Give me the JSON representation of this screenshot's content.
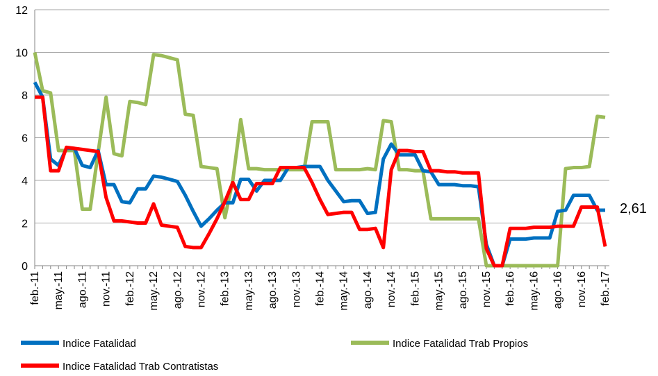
{
  "chart_data": {
    "type": "line",
    "categories": [
      "feb.-11",
      null,
      null,
      "may.-11",
      null,
      null,
      "ago.-11",
      null,
      null,
      "nov.-11",
      null,
      null,
      "feb.-12",
      null,
      null,
      "may.-12",
      null,
      null,
      "ago.-12",
      null,
      null,
      "nov.-12",
      null,
      null,
      "feb.-13",
      null,
      null,
      "may.-13",
      null,
      null,
      "ago.-13",
      null,
      null,
      "nov.-13",
      null,
      null,
      "feb.-14",
      null,
      null,
      "may.-14",
      null,
      null,
      "ago.-14",
      null,
      null,
      "nov.-14",
      null,
      null,
      "feb.-15",
      null,
      null,
      "may.-15",
      null,
      null,
      "ago.-15",
      null,
      null,
      "nov.-15",
      null,
      null,
      "feb.-16",
      null,
      null,
      "may.-16",
      null,
      null,
      "ago.-16",
      null,
      null,
      "nov.-16",
      null,
      null,
      "feb.-17"
    ],
    "series": [
      {
        "name": "Indice Fatalidad",
        "color": "#0070c0",
        "values": [
          8.6,
          7.9,
          5.0,
          4.7,
          5.5,
          5.5,
          4.7,
          4.6,
          5.4,
          3.8,
          3.8,
          3.0,
          2.95,
          3.6,
          3.6,
          4.2,
          4.15,
          4.05,
          3.95,
          3.3,
          2.55,
          1.85,
          2.2,
          2.6,
          2.95,
          2.95,
          4.05,
          4.05,
          3.5,
          4.0,
          4.0,
          4.0,
          4.6,
          4.6,
          4.65,
          4.65,
          4.65,
          4.0,
          3.5,
          3.0,
          3.05,
          3.05,
          2.45,
          2.5,
          5.0,
          5.7,
          5.2,
          5.2,
          5.2,
          4.45,
          4.4,
          3.8,
          3.8,
          3.8,
          3.75,
          3.75,
          3.7,
          1.0,
          0,
          0,
          1.25,
          1.25,
          1.25,
          1.3,
          1.3,
          1.3,
          2.55,
          2.6,
          3.3,
          3.3,
          3.3,
          2.6,
          2.6
        ]
      },
      {
        "name": "Indice Fatalidad Trab Propios",
        "color": "#9bbb59",
        "values": [
          10.0,
          8.2,
          8.1,
          5.4,
          5.4,
          5.4,
          2.65,
          2.65,
          5.3,
          7.9,
          5.25,
          5.15,
          7.7,
          7.65,
          7.55,
          9.9,
          9.85,
          9.75,
          9.65,
          7.1,
          7.05,
          4.65,
          4.6,
          4.55,
          2.25,
          4.0,
          6.85,
          4.55,
          4.55,
          4.5,
          4.5,
          4.5,
          4.5,
          4.5,
          4.5,
          6.75,
          6.75,
          6.75,
          4.5,
          4.5,
          4.5,
          4.5,
          4.55,
          4.5,
          6.8,
          6.75,
          4.5,
          4.5,
          4.45,
          4.45,
          2.2,
          2.2,
          2.2,
          2.2,
          2.2,
          2.2,
          2.2,
          0,
          0,
          0,
          0,
          0,
          0,
          0,
          0,
          0,
          0,
          4.55,
          4.6,
          4.6,
          4.65,
          7.0,
          6.95
        ]
      },
      {
        "name": "Indice Fatalidad Trab Contratistas",
        "color": "#ff0000",
        "values": [
          7.9,
          7.9,
          4.45,
          4.45,
          5.55,
          5.5,
          5.45,
          5.4,
          5.35,
          3.2,
          2.1,
          2.1,
          2.05,
          2.0,
          2.0,
          2.9,
          1.9,
          1.85,
          1.8,
          0.9,
          0.85,
          0.85,
          1.5,
          2.2,
          3.0,
          3.9,
          3.1,
          3.1,
          3.85,
          3.85,
          3.85,
          4.6,
          4.6,
          4.6,
          4.6,
          3.9,
          3.1,
          2.4,
          2.45,
          2.5,
          2.5,
          1.7,
          1.7,
          1.75,
          0.85,
          4.5,
          5.4,
          5.4,
          5.35,
          5.35,
          4.45,
          4.45,
          4.4,
          4.4,
          4.35,
          4.35,
          4.35,
          0.8,
          0,
          0,
          1.75,
          1.75,
          1.75,
          1.8,
          1.8,
          1.8,
          1.85,
          1.85,
          1.85,
          2.75,
          2.75,
          2.75,
          0.9
        ]
      }
    ],
    "annotation": "2,61",
    "ylim": [
      0,
      12
    ],
    "yticks": [
      0,
      2,
      4,
      6,
      8,
      10,
      12
    ],
    "grid": true,
    "legend": "bottom"
  }
}
